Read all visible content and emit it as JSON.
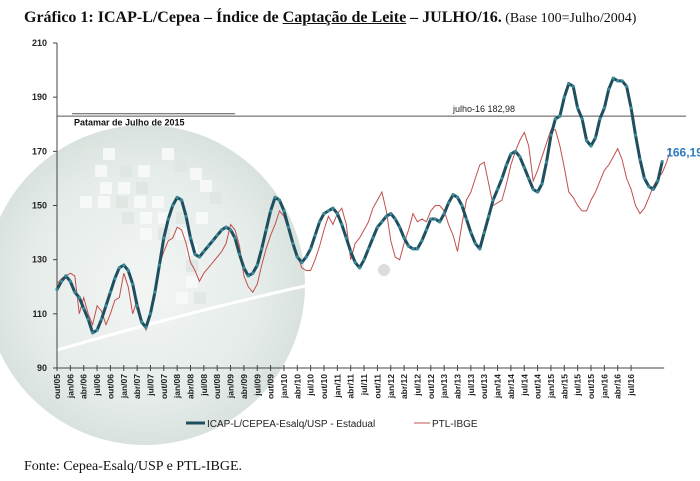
{
  "title": {
    "prefix": "Gráfico 1: ICAP-L/Cepea – Índice de ",
    "underlined": "Captação de Leite",
    "suffix": " – JULHO/16.",
    "base": " (Base 100=Julho/2004)"
  },
  "source": "Fonte: Cepea-Esalq/USP  e PTL-IBGE.",
  "chart_data": {
    "type": "line",
    "title": "ICAP-L/Cepea – Índice de Captação de Leite – JULHO/16",
    "xlabel": "",
    "ylabel": "",
    "ylim": [
      90,
      210
    ],
    "yticks": [
      90,
      110,
      130,
      150,
      170,
      190,
      210
    ],
    "x_tick_labels": [
      "out/05",
      "jan/06",
      "abr/06",
      "jul/06",
      "out/06",
      "jan/07",
      "abr/07",
      "jul/07",
      "out/07",
      "jan/08",
      "abr/08",
      "jul/08",
      "out/08",
      "jan/09",
      "abr/09",
      "jul/09",
      "out/09",
      "jan/10",
      "abr/10",
      "jul/10",
      "out/10",
      "jan/11",
      "abr/11",
      "jul/11",
      "out/11",
      "jan/12",
      "abr/12",
      "jul/12",
      "out/12",
      "jan/13",
      "abr/13",
      "jul/13",
      "out/13",
      "jan/14",
      "abr/14",
      "jul/14",
      "out/14",
      "jan/15",
      "abr/15",
      "jul/15",
      "out/15",
      "jan/16",
      "abr/16",
      "jul/16"
    ],
    "x_start": "out/05",
    "x_end": "jul/16",
    "frequency": "monthly",
    "grid": false,
    "legend_position": "bottom",
    "series": [
      {
        "name": "ICAP-L/CEPEA-Esalq/USP - Estadual",
        "color": "#1f4e5f",
        "values": [
          119,
          122,
          124,
          122,
          118,
          116,
          112,
          108,
          103,
          104,
          108,
          113,
          118,
          123,
          127,
          128,
          126,
          121,
          113,
          107,
          105,
          110,
          118,
          128,
          138,
          145,
          150,
          153,
          152,
          146,
          138,
          132,
          131,
          133,
          135,
          137,
          139,
          141,
          142,
          141,
          138,
          132,
          127,
          124,
          125,
          128,
          134,
          141,
          148,
          153,
          152,
          148,
          142,
          136,
          131,
          129,
          131,
          134,
          139,
          144,
          147,
          148,
          149,
          147,
          143,
          138,
          133,
          129,
          127,
          130,
          134,
          138,
          142,
          144,
          146,
          147,
          145,
          142,
          138,
          135,
          134,
          134,
          137,
          141,
          145,
          145,
          144,
          147,
          151,
          154,
          153,
          150,
          145,
          140,
          136,
          134,
          140,
          146,
          152,
          156,
          160,
          165,
          169,
          170,
          168,
          164,
          160,
          156,
          155,
          158,
          166,
          176,
          182,
          183,
          190,
          195,
          194,
          186,
          182,
          174,
          172,
          175,
          182,
          186,
          193,
          197,
          196,
          196,
          194,
          186,
          176,
          167,
          160,
          157,
          156,
          159,
          166.19
        ]
      },
      {
        "name": "PTL-IBGE",
        "color": "#c0504d",
        "values": [
          121,
          123,
          124,
          125,
          124,
          110,
          116,
          110,
          106,
          113,
          111,
          106,
          110,
          115,
          116,
          125,
          120,
          110,
          115,
          108,
          104,
          110,
          116,
          128,
          133,
          137,
          138,
          142,
          141,
          136,
          129,
          126,
          122,
          125,
          127,
          129,
          131,
          133,
          136,
          143,
          141,
          135,
          124,
          120,
          118,
          121,
          128,
          134,
          139,
          143,
          148,
          146,
          141,
          135,
          132,
          127,
          126,
          126,
          130,
          135,
          141,
          146,
          143,
          147,
          149,
          143,
          130,
          136,
          138,
          141,
          144,
          149,
          152,
          155,
          148,
          137,
          131,
          130,
          136,
          141,
          147,
          144,
          145,
          144,
          148,
          150,
          150,
          148,
          143,
          139,
          133,
          143,
          152,
          155,
          160,
          165,
          166,
          158,
          150,
          151,
          152,
          158,
          165,
          170,
          174,
          177,
          172,
          159,
          163,
          168,
          173,
          178,
          178,
          172,
          164,
          155,
          153,
          150,
          148,
          148,
          152,
          155,
          159,
          163,
          165,
          168,
          171,
          167,
          160,
          156,
          150,
          147,
          149,
          153,
          157,
          160,
          162,
          166,
          171
        ]
      }
    ],
    "reference_lines": [
      {
        "label": "julho-16 182,98",
        "value": 182.98
      },
      {
        "label": "Patamar de Julho de 2015",
        "value": 185
      }
    ],
    "annotations": [
      {
        "text": "166,19",
        "series": "ICAP-L/CEPEA-Esalq/USP - Estadual",
        "at": "jul/16"
      }
    ]
  }
}
